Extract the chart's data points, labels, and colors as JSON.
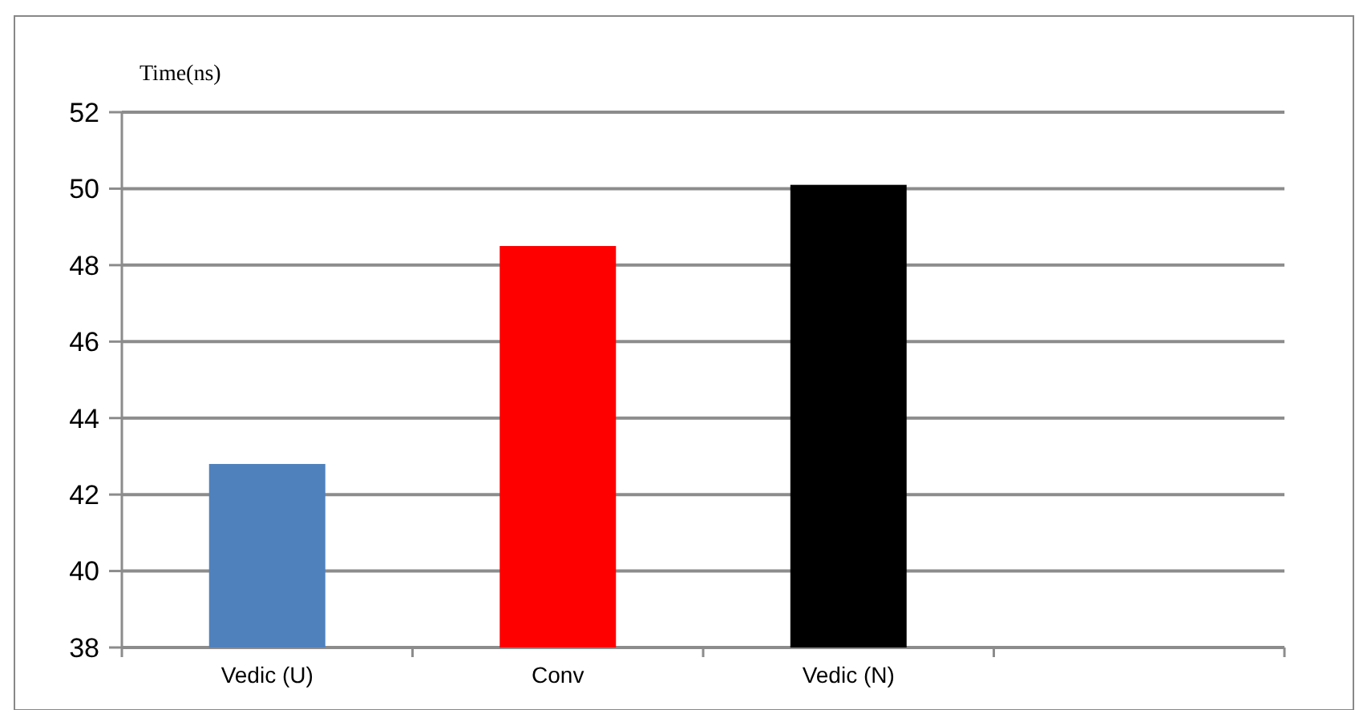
{
  "chart_data": {
    "type": "bar",
    "ylabel": "Time(ns)",
    "categories": [
      "Vedic (U)",
      "Conv",
      "Vedic (N)",
      null
    ],
    "values": [
      42.8,
      48.5,
      50.1,
      null
    ],
    "colors": [
      "#4f81bd",
      "#ff0000",
      "#000000",
      null
    ],
    "ylim": [
      38,
      52
    ],
    "yticks": [
      38,
      40,
      42,
      44,
      46,
      48,
      50,
      52
    ],
    "grid": "y"
  }
}
